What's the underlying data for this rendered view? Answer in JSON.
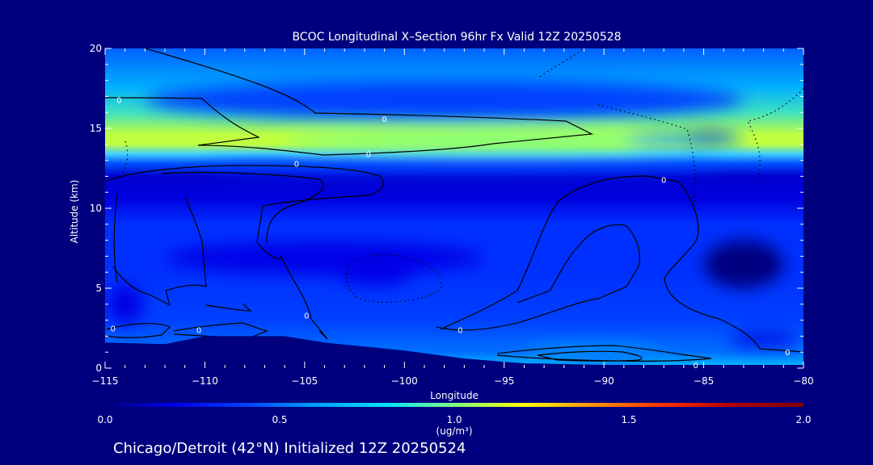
{
  "chart_data": {
    "type": "heatmap",
    "title": "BCOC Longitudinal X–Section 96hr  Fx Valid 12Z 20250528",
    "subtitle": "Chicago/Detroit (42°N) Initialized 12Z 20250524",
    "xlabel": "Longitude",
    "ylabel": "Altitude (km)",
    "xlim": [
      -115,
      -80
    ],
    "ylim": [
      0,
      20
    ],
    "x_ticks": [
      -115,
      -110,
      -105,
      -100,
      -95,
      -90,
      -85,
      -80
    ],
    "x_tick_labels": [
      "−115",
      "−110",
      "−105",
      "−100",
      "−95",
      "−90",
      "−85",
      "−80"
    ],
    "y_ticks": [
      0,
      5,
      10,
      15,
      20
    ],
    "y_tick_labels": [
      "0",
      "5",
      "10",
      "15",
      "20"
    ],
    "colorbar": {
      "label": "(ug/m³)",
      "range": [
        0.0,
        2.0
      ],
      "ticks": [
        0.0,
        0.5,
        1.0,
        1.5,
        2.0
      ],
      "tick_labels": [
        "0.0",
        "0.5",
        "1.0",
        "1.5",
        "2.0"
      ],
      "stops": [
        "#00007f",
        "#0000e6",
        "#0040ff",
        "#00a0ff",
        "#00e0ff",
        "#80ff80",
        "#ffff00",
        "#ff9000",
        "#ff3000",
        "#b00000",
        "#800000"
      ]
    },
    "terrain_color": "#00007f",
    "terrain": [
      [
        -115,
        1.6
      ],
      [
        -112,
        1.5
      ],
      [
        -110,
        2.0
      ],
      [
        -106,
        2.0
      ],
      [
        -104,
        1.6
      ],
      [
        -100,
        1.1
      ],
      [
        -97,
        0.6
      ],
      [
        -94,
        0.3
      ],
      [
        -90,
        0.2
      ],
      [
        -85,
        0.2
      ],
      [
        -80,
        0.2
      ]
    ],
    "contour_level_label": "0",
    "contour_labels": [
      {
        "lon": -114.3,
        "alt": 16.8,
        "text": "0"
      },
      {
        "lon": -101.0,
        "alt": 15.6,
        "text": "0"
      },
      {
        "lon": -101.8,
        "alt": 13.4,
        "text": "0"
      },
      {
        "lon": -105.4,
        "alt": 12.8,
        "text": "0"
      },
      {
        "lon": -87.0,
        "alt": 11.8,
        "text": "0"
      },
      {
        "lon": -114.6,
        "alt": 2.5,
        "text": "0"
      },
      {
        "lon": -110.3,
        "alt": 2.4,
        "text": "0"
      },
      {
        "lon": -104.9,
        "alt": 3.3,
        "text": "0"
      },
      {
        "lon": -97.2,
        "alt": 2.4,
        "text": "0"
      },
      {
        "lon": -85.4,
        "alt": 0.2,
        "text": "0"
      },
      {
        "lon": -80.8,
        "alt": 1.0,
        "text": "0"
      }
    ],
    "features": [
      {
        "lon": -95.0,
        "alt": 14.2,
        "dlon": 22,
        "dalt": 1.2,
        "value": 1.05
      },
      {
        "lon": -86.0,
        "alt": 14.3,
        "dlon": 6,
        "dalt": 0.8,
        "value": 0.6
      },
      {
        "lon": -84.7,
        "alt": 14.5,
        "dlon": 2.5,
        "dalt": 0.5,
        "value": 0.25
      },
      {
        "lon": -98.0,
        "alt": 16.8,
        "dlon": 30,
        "dalt": 2.5,
        "value": 0.45
      },
      {
        "lon": -97.0,
        "alt": 12.6,
        "dlon": 26,
        "dalt": 0.7,
        "value": 0.45
      },
      {
        "lon": -104.0,
        "alt": 6.9,
        "dlon": 16,
        "dalt": 2.0,
        "value": 0.2
      },
      {
        "lon": -101.5,
        "alt": 6.1,
        "dlon": 4,
        "dalt": 1.8,
        "value": 0.2
      },
      {
        "lon": -114.0,
        "alt": 4.0,
        "dlon": 1.8,
        "dalt": 2.5,
        "value": 0.25
      },
      {
        "lon": -83.0,
        "alt": 6.5,
        "dlon": 4,
        "dalt": 3,
        "value": 0.05
      },
      {
        "lon": -82.0,
        "alt": 1.8,
        "dlon": 3.5,
        "dalt": 0.8,
        "value": 0.15
      },
      {
        "lon": -90.5,
        "alt": 1.1,
        "dlon": 7,
        "dalt": 0.6,
        "value": 0.55
      },
      {
        "lon": -90.0,
        "alt": 0.55,
        "dlon": 5,
        "dalt": 0.4,
        "value": 0.45
      }
    ]
  }
}
